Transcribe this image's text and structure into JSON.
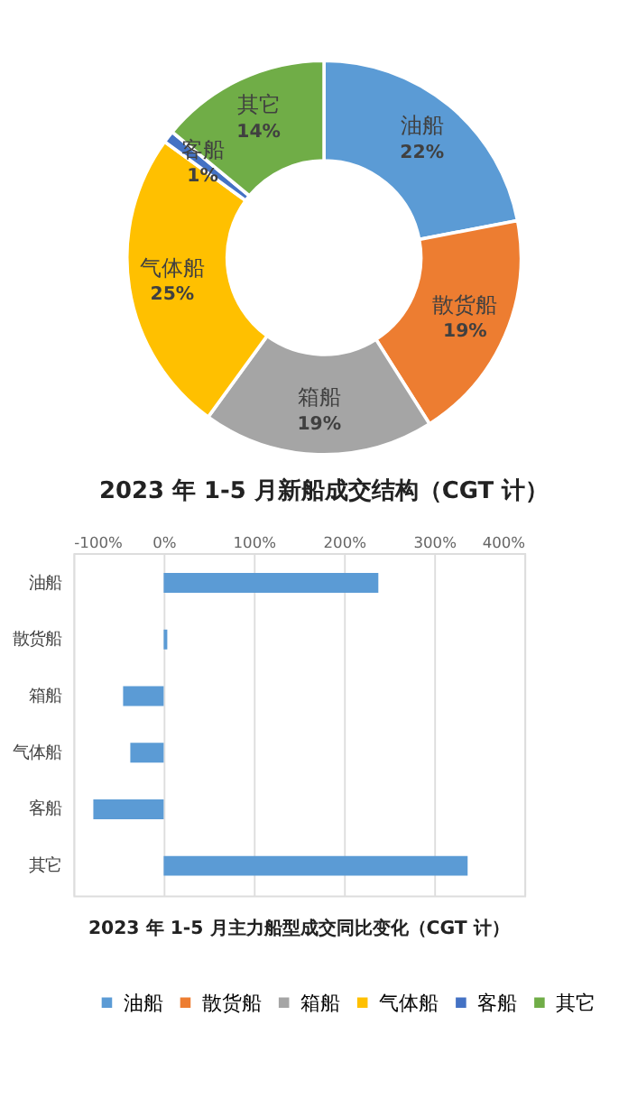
{
  "chart_data": [
    {
      "type": "donut",
      "title": "2023 年 1-5 月新船成交结构（CGT 计）",
      "categories": [
        "油船",
        "散货船",
        "箱船",
        "气体船",
        "客船",
        "其它"
      ],
      "values": [
        22,
        19,
        19,
        25,
        1,
        14
      ],
      "value_labels": [
        "22%",
        "19%",
        "19%",
        "25%",
        "1%",
        "14%"
      ],
      "colors": [
        "#5b9bd5",
        "#ed7d31",
        "#a5a5a5",
        "#ffc000",
        "#4472c4",
        "#70ad47"
      ],
      "legend": "bottom"
    },
    {
      "type": "bar",
      "orientation": "horizontal",
      "title": "2023 年 1-5 月主力船型成交同比变化（CGT 计）",
      "categories": [
        "油船",
        "散货船",
        "箱船",
        "气体船",
        "客船",
        "其它"
      ],
      "values": [
        238,
        4,
        -45,
        -37,
        -78,
        337
      ],
      "color": "#5b9bd5",
      "xlim": [
        -100,
        400
      ],
      "xticks": [
        {
          "value": -100,
          "label": "-100%"
        },
        {
          "value": 0,
          "label": "0%"
        },
        {
          "value": 100,
          "label": "100%"
        },
        {
          "value": 200,
          "label": "200%"
        },
        {
          "value": 300,
          "label": "300%"
        },
        {
          "value": 400,
          "label": "400%"
        }
      ],
      "grid": "x"
    }
  ]
}
